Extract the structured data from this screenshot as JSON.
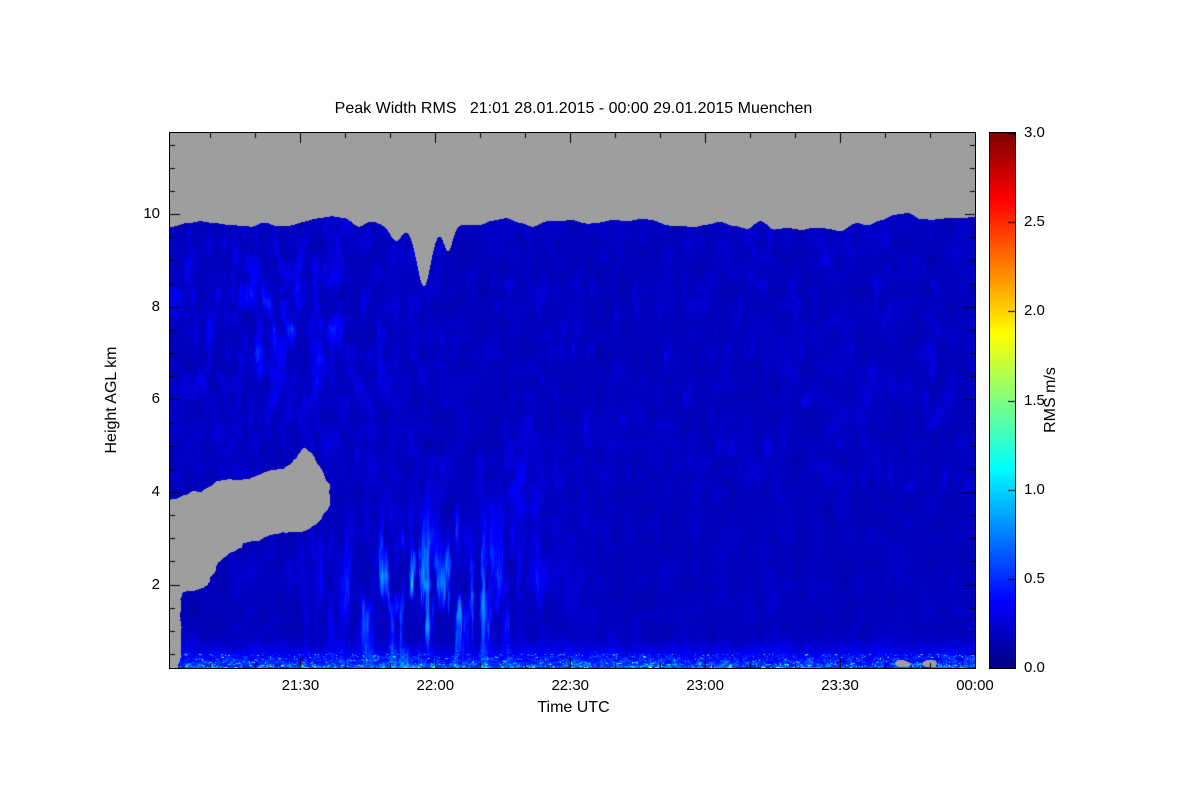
{
  "title": "Peak Width RMS   21:01 28.01.2015 - 00:00 29.01.2015 Muenchen",
  "chart_data": {
    "type": "heatmap",
    "title": "Peak Width RMS   21:01 28.01.2015 - 00:00 29.01.2015 Muenchen",
    "quantity": "Peak Width RMS",
    "time_start": "21:01 28.01.2015",
    "time_end": "00:00 29.01.2015",
    "location": "Muenchen",
    "xlabel": "Time UTC",
    "ylabel": "Height AGL km",
    "x_ticks": [
      {
        "label": "21:30",
        "minutes": 29
      },
      {
        "label": "22:00",
        "minutes": 59
      },
      {
        "label": "22:30",
        "minutes": 89
      },
      {
        "label": "23:00",
        "minutes": 119
      },
      {
        "label": "23:30",
        "minutes": 149
      },
      {
        "label": "00:00",
        "minutes": 179
      }
    ],
    "x_total_minutes": 179,
    "x_minor_tick_minutes": 10,
    "y_ticks": [
      2,
      4,
      6,
      8,
      10
    ],
    "y_minor_step_km": 0.5,
    "y_min_km": 0.2,
    "y_max_km": 11.75,
    "colorbar": {
      "label": "RMS m/s",
      "min": 0.0,
      "max": 3.0,
      "ticks": [
        "0.0",
        "0.5",
        "1.0",
        "1.5",
        "2.0",
        "2.5",
        "3.0"
      ],
      "colormap": "jet",
      "color_stops": {
        "0.0": "#00008f",
        "0.5": "#002bff",
        "1.0": "#00d4ff",
        "1.5": "#80ff80",
        "2.0": "#ffd400",
        "2.5": "#ff2b00",
        "3.0": "#800000"
      }
    },
    "no_data_color": "#9e9e9e",
    "background_color": "#ffffff",
    "features": [
      {
        "name": "no-data-above-signal-top",
        "kind": "no-data",
        "description": "gray region above jagged signal top at 9.5-10.2 km, notch down to ~8.4 km near 21:57"
      },
      {
        "name": "no-data-patch-left",
        "kind": "no-data",
        "time": [
          "21:01",
          "21:40"
        ],
        "height_km": [
          2.4,
          4.9
        ],
        "description": "wispy gray no-data blob on left side around 3-4.5 km"
      },
      {
        "name": "no-data-strip-bottom-left",
        "kind": "no-data",
        "time": [
          "21:01",
          "21:04"
        ],
        "height_km": [
          0.2,
          1.6
        ]
      },
      {
        "name": "background-clear-air",
        "kind": "value",
        "rms_ms": [
          0.1,
          0.35
        ],
        "description": "dark blue low RMS over most of the cross-section"
      },
      {
        "name": "turbulent-streaks",
        "kind": "value",
        "time": [
          "21:40",
          "22:35"
        ],
        "height_km": [
          0.5,
          3.8
        ],
        "rms_ms": [
          0.5,
          1.3
        ],
        "description": "bright blue-cyan vertical streaks"
      },
      {
        "name": "mid-level-patch",
        "kind": "value",
        "time": [
          "22:15",
          "22:25"
        ],
        "height_km": [
          3.2,
          4.8
        ],
        "rms_ms": [
          0.5,
          1.0
        ]
      },
      {
        "name": "boundary-layer",
        "kind": "value",
        "height_km": [
          0.2,
          0.8
        ],
        "rms_ms": [
          0.5,
          2.0
        ],
        "description": "bright near-surface layer with cyan/green/yellow speckles across all times"
      }
    ]
  }
}
